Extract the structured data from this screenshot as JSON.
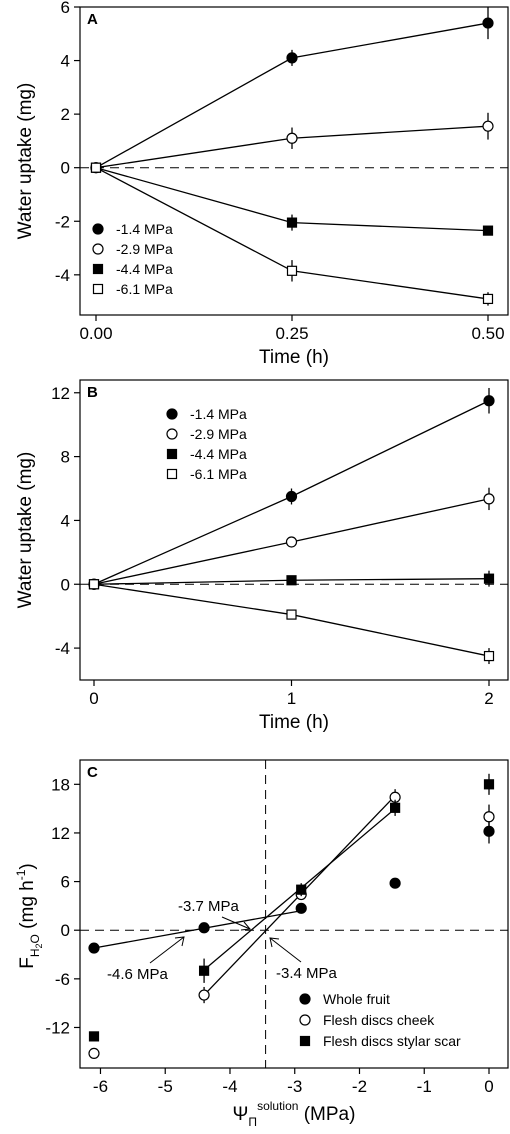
{
  "chart_data": [
    {
      "panel_label": "A",
      "type": "line",
      "xlabel": "Time (h)",
      "ylabel": "Water uptake (mg)",
      "xlim": [
        0,
        0.5
      ],
      "ylim": [
        -5.5,
        6
      ],
      "xticks": [
        0,
        0.25,
        0.5
      ],
      "xtick_labels": [
        "0.00",
        "0.25",
        "0.50"
      ],
      "yticks": [
        -4,
        -2,
        0,
        2,
        4,
        6
      ],
      "ytick_labels": [
        "-4",
        "-2",
        "0",
        "2",
        "4",
        "6"
      ],
      "legend_position": "lower-left",
      "zero_line": "dashed",
      "series": [
        {
          "name": "-1.4 MPa",
          "marker": "filled-circle",
          "x": [
            0,
            0.25,
            0.5
          ],
          "y": [
            0,
            4.1,
            5.4
          ],
          "err": [
            0,
            0.3,
            0.6
          ]
        },
        {
          "name": "-2.9 MPa",
          "marker": "open-circle",
          "x": [
            0,
            0.25,
            0.5
          ],
          "y": [
            0,
            1.1,
            1.55
          ],
          "err": [
            0,
            0.4,
            0.5
          ]
        },
        {
          "name": "-4.4 MPa",
          "marker": "filled-square",
          "x": [
            0,
            0.25,
            0.5
          ],
          "y": [
            0,
            -2.05,
            -2.35
          ],
          "err": [
            0,
            0.3,
            0.15
          ]
        },
        {
          "name": "-6.1 MPa",
          "marker": "open-square",
          "x": [
            0,
            0.25,
            0.5
          ],
          "y": [
            0,
            -3.85,
            -4.9
          ],
          "err": [
            0,
            0.4,
            0.25
          ]
        }
      ]
    },
    {
      "panel_label": "B",
      "type": "line",
      "xlabel": "Time (h)",
      "ylabel": "Water uptake (mg)",
      "xlim": [
        0,
        2
      ],
      "ylim": [
        -6,
        12.8
      ],
      "xticks": [
        0,
        1,
        2
      ],
      "xtick_labels": [
        "0",
        "1",
        "2"
      ],
      "yticks": [
        -4,
        0,
        4,
        8,
        12
      ],
      "ytick_labels": [
        "-4",
        "0",
        "4",
        "8",
        "12"
      ],
      "legend_position": "top-left",
      "zero_line": "dashed",
      "series": [
        {
          "name": "-1.4 MPa",
          "marker": "filled-circle",
          "x": [
            0,
            1,
            2
          ],
          "y": [
            0,
            5.5,
            11.5
          ],
          "err": [
            0,
            0.5,
            0.8
          ]
        },
        {
          "name": "-2.9 MPa",
          "marker": "open-circle",
          "x": [
            0,
            1,
            2
          ],
          "y": [
            0,
            2.65,
            5.35
          ],
          "err": [
            0,
            0.2,
            0.7
          ]
        },
        {
          "name": "-4.4 MPa",
          "marker": "filled-square",
          "x": [
            0,
            1,
            2
          ],
          "y": [
            0,
            0.25,
            0.35
          ],
          "err": [
            0,
            0.1,
            0.5
          ]
        },
        {
          "name": "-6.1 MPa",
          "marker": "open-square",
          "x": [
            0,
            1,
            2
          ],
          "y": [
            0,
            -1.9,
            -4.5
          ],
          "err": [
            0,
            0.1,
            0.5
          ]
        }
      ]
    },
    {
      "panel_label": "C",
      "type": "scatter",
      "xlabel_symbol": "Ψ",
      "xlabel_sub": "Π",
      "xlabel_sup": "solution",
      "xlabel_unit": " (MPa)",
      "ylabel_main": "F",
      "ylabel_sub": "H",
      "ylabel_sub2": "2",
      "ylabel_sub3": "O",
      "ylabel_unit": " (mg h",
      "ylabel_sup": "-1",
      "ylabel_close": ")",
      "xlim": [
        -6.3,
        0.2
      ],
      "ylim": [
        -17,
        21
      ],
      "xticks": [
        -6,
        -5,
        -4,
        -3,
        -2,
        -1,
        0
      ],
      "xtick_labels": [
        "-6",
        "-5",
        "-4",
        "-3",
        "-2",
        "-1",
        "0"
      ],
      "yticks": [
        -12,
        -6,
        0,
        6,
        12,
        18
      ],
      "ytick_labels": [
        "-12",
        "-6",
        "0",
        "6",
        "12",
        "18"
      ],
      "legend_position": "lower-right",
      "zero_line": "dashed",
      "vertical_reference_x": -3.45,
      "series": [
        {
          "name": "Whole fruit",
          "marker": "filled-circle",
          "x": [
            -6.1,
            -4.4,
            -2.9,
            -1.45,
            0
          ],
          "y": [
            -2.2,
            0.3,
            2.7,
            5.8,
            12.2
          ],
          "err": [
            0,
            0,
            0,
            0,
            1.5
          ]
        },
        {
          "name": "Flesh discs cheek",
          "marker": "open-circle",
          "x": [
            -6.1,
            -4.4,
            -2.9,
            -1.45,
            0
          ],
          "y": [
            -15.2,
            -8.0,
            4.4,
            16.4,
            14.0
          ],
          "err": [
            0,
            1.0,
            0.6,
            1.0,
            1.5
          ]
        },
        {
          "name": "Flesh discs stylar scar",
          "marker": "filled-square",
          "x": [
            -6.1,
            -4.4,
            -2.9,
            -1.45,
            0
          ],
          "y": [
            -13.1,
            -5.0,
            5.0,
            15.1,
            18.0
          ],
          "err": [
            0,
            1.5,
            0.8,
            1.0,
            1.3
          ]
        }
      ],
      "fit_lines": [
        {
          "series": "Whole fruit",
          "x": [
            -6.1,
            -2.9
          ],
          "y": [
            -2.2,
            2.4
          ]
        },
        {
          "series": "Flesh discs cheek",
          "x": [
            -4.4,
            -1.45
          ],
          "y": [
            -8.0,
            16.6
          ]
        },
        {
          "series": "Flesh discs stylar scar",
          "x": [
            -4.4,
            -1.45
          ],
          "y": [
            -4.9,
            15.0
          ]
        }
      ],
      "annotations": [
        {
          "text": "-3.7 MPa",
          "points_to": [
            -3.7,
            0
          ]
        },
        {
          "text": "-4.6 MPa",
          "points_to": [
            -4.6,
            0
          ]
        },
        {
          "text": "-3.4 MPa",
          "points_to": [
            -3.4,
            0
          ]
        }
      ]
    }
  ]
}
